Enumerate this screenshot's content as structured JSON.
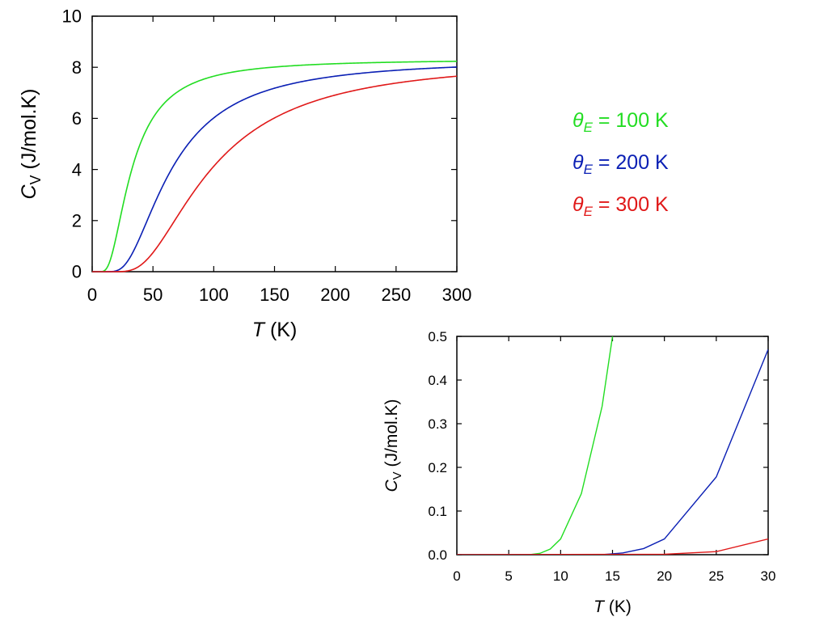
{
  "chart_data": [
    {
      "type": "line",
      "xlim": [
        0,
        300
      ],
      "ylim": [
        0,
        10
      ],
      "xticks": [
        0,
        50,
        100,
        150,
        200,
        250,
        300
      ],
      "yticks": [
        0,
        2,
        4,
        6,
        8,
        10
      ],
      "xlabel": {
        "symbol": "T",
        "unit": "(K)"
      },
      "ylabel": {
        "symbol": "C",
        "sub": "V",
        "unit": "(J/mol.K)"
      },
      "grid": false,
      "legend": "right",
      "series": [
        {
          "symbol": "θ",
          "sub": "E",
          "rest": " = 100 K",
          "theta_E": 100,
          "color": "#22dd22"
        },
        {
          "symbol": "θ",
          "sub": "E",
          "rest": " = 200 K",
          "theta_E": 200,
          "color": "#0a1fb4"
        },
        {
          "symbol": "θ",
          "sub": "E",
          "rest": " = 300 K",
          "theta_E": 300,
          "color": "#e01818"
        }
      ]
    },
    {
      "type": "line",
      "xlim": [
        0,
        30
      ],
      "ylim": [
        0,
        0.5
      ],
      "xticks": [
        0,
        5,
        10,
        15,
        20,
        25,
        30
      ],
      "yticks": [
        "0.0",
        "0.1",
        "0.2",
        "0.3",
        "0.4",
        "0.5"
      ],
      "xlabel": {
        "symbol": "T",
        "unit": "(K)"
      },
      "ylabel": {
        "symbol": "C",
        "sub": "V",
        "unit": "(J/mol.K)"
      },
      "grid": false,
      "series": [
        {
          "theta_E": 100,
          "color": "#22dd22",
          "x": [
            0,
            5,
            7,
            8,
            9,
            10,
            12,
            14,
            15
          ],
          "y": [
            0,
            0,
            0,
            0.003,
            0.013,
            0.036,
            0.14,
            0.34,
            0.5
          ]
        },
        {
          "theta_E": 200,
          "color": "#0a1fb4",
          "x": [
            0,
            14,
            16,
            18,
            20,
            25,
            30
          ],
          "y": [
            0,
            0,
            0.004,
            0.014,
            0.036,
            0.178,
            0.47
          ]
        },
        {
          "theta_E": 300,
          "color": "#e01818",
          "x": [
            0,
            20,
            25,
            30
          ],
          "y": [
            0,
            0.001,
            0.007,
            0.036
          ]
        }
      ]
    }
  ]
}
